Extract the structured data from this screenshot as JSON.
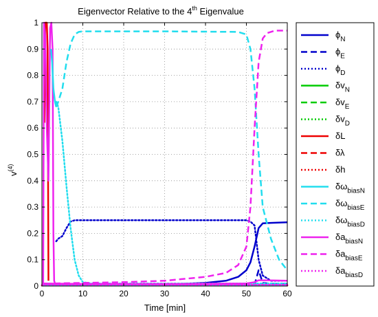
{
  "chart_data": {
    "type": "line",
    "title": "Eigenvector Relative to the 4th Eigenvalue",
    "title_parts": {
      "pre": "Eigenvector Relative to the 4",
      "sup": "th",
      "post": " Eigenvalue"
    },
    "xlabel": "Time [min]",
    "ylabel": {
      "base": "v",
      "sup": "(4)"
    },
    "xlim": [
      0,
      60
    ],
    "ylim": [
      0,
      1
    ],
    "xticks": [
      0,
      10,
      20,
      30,
      40,
      50,
      60
    ],
    "yticks": [
      0,
      0.1,
      0.2,
      0.3,
      0.4,
      0.5,
      0.6,
      0.7,
      0.8,
      0.9,
      1
    ],
    "ytick_labels": [
      "0",
      "0.1",
      "0.2",
      "0.3",
      "0.4",
      "0.5",
      "0.6",
      "0.7",
      "0.8",
      "0.9",
      "1"
    ],
    "grid": true,
    "legend_position": "outside-right",
    "series": [
      {
        "name": "ϕN",
        "base": "ϕ",
        "sub": "N",
        "color": "#0000cc",
        "style": "solid",
        "points": [
          [
            0,
            0.01
          ],
          [
            5,
            0.005
          ],
          [
            10,
            0.004
          ],
          [
            20,
            0.004
          ],
          [
            30,
            0.006
          ],
          [
            40,
            0.012
          ],
          [
            45,
            0.02
          ],
          [
            48,
            0.035
          ],
          [
            50,
            0.06
          ],
          [
            51,
            0.09
          ],
          [
            52,
            0.15
          ],
          [
            53,
            0.22
          ],
          [
            54,
            0.238
          ],
          [
            56,
            0.24
          ],
          [
            60,
            0.242
          ]
        ]
      },
      {
        "name": "ϕE",
        "base": "ϕ",
        "sub": "E",
        "color": "#0000cc",
        "style": "dash",
        "points": [
          [
            0,
            0.005
          ],
          [
            10,
            0.003
          ],
          [
            30,
            0.003
          ],
          [
            50,
            0.004
          ],
          [
            52,
            0.006
          ],
          [
            53,
            0.06
          ],
          [
            54,
            0.012
          ],
          [
            56,
            0.009
          ],
          [
            60,
            0.008
          ]
        ]
      },
      {
        "name": "ϕD",
        "base": "ϕ",
        "sub": "D",
        "color": "#0000cc",
        "style": "dot",
        "points": [
          [
            3.5,
            0.17
          ],
          [
            4,
            0.18
          ],
          [
            5,
            0.19
          ],
          [
            6,
            0.22
          ],
          [
            7,
            0.245
          ],
          [
            8,
            0.25
          ],
          [
            20,
            0.25
          ],
          [
            40,
            0.25
          ],
          [
            50,
            0.25
          ],
          [
            51,
            0.245
          ],
          [
            52,
            0.23
          ],
          [
            53,
            0.1
          ],
          [
            54,
            0.04
          ],
          [
            56,
            0.02
          ],
          [
            60,
            0.02
          ]
        ]
      },
      {
        "name": "δvN",
        "base": "δv",
        "sub": "N",
        "color": "#00cc00",
        "style": "solid",
        "points": [
          [
            0,
            0.002
          ],
          [
            60,
            0.002
          ]
        ]
      },
      {
        "name": "δvE",
        "base": "δv",
        "sub": "E",
        "color": "#00cc00",
        "style": "dash",
        "points": [
          [
            0,
            0.002
          ],
          [
            60,
            0.002
          ]
        ]
      },
      {
        "name": "δvD",
        "base": "δv",
        "sub": "D",
        "color": "#00cc00",
        "style": "dot",
        "points": [
          [
            0,
            0.002
          ],
          [
            60,
            0.002
          ]
        ]
      },
      {
        "name": "δL",
        "base": "δL",
        "sub": "",
        "color": "#ee0000",
        "style": "solid",
        "points": [
          [
            0.6,
            0.62
          ],
          [
            0.8,
            1
          ],
          [
            1.2,
            1
          ],
          [
            1.4,
            0.9
          ],
          [
            1.6,
            0.02
          ]
        ]
      },
      {
        "name": "δλ",
        "base": "δλ",
        "sub": "",
        "color": "#ee0000",
        "style": "dash",
        "points": [
          [
            0,
            0.002
          ],
          [
            60,
            0.002
          ]
        ]
      },
      {
        "name": "δh",
        "base": "δh",
        "sub": "",
        "color": "#ee0000",
        "style": "dot",
        "points": [
          [
            0,
            0.002
          ],
          [
            60,
            0.002
          ]
        ]
      },
      {
        "name": "δωbiasN",
        "base": "δω",
        "sub": "biasN",
        "color": "#22ddee",
        "style": "solid",
        "points": [
          [
            0,
            0.003
          ],
          [
            60,
            0.003
          ]
        ]
      },
      {
        "name": "δωbiasE",
        "base": "δω",
        "sub": "biasE",
        "color": "#22ddee",
        "style": "dash",
        "points": [
          [
            3.5,
            0.68
          ],
          [
            4,
            0.7
          ],
          [
            5,
            0.75
          ],
          [
            6,
            0.85
          ],
          [
            7,
            0.92
          ],
          [
            8,
            0.955
          ],
          [
            9,
            0.965
          ],
          [
            10,
            0.967
          ],
          [
            30,
            0.967
          ],
          [
            48,
            0.965
          ],
          [
            50,
            0.955
          ],
          [
            51,
            0.9
          ],
          [
            52,
            0.75
          ],
          [
            53,
            0.5
          ],
          [
            54,
            0.3
          ],
          [
            56,
            0.18
          ],
          [
            58,
            0.1
          ],
          [
            60,
            0.06
          ]
        ]
      },
      {
        "name": "δωbiasD",
        "base": "δω",
        "sub": "biasD",
        "color": "#22ddee",
        "style": "dot",
        "points": [
          [
            3.5,
            0.7
          ],
          [
            4,
            0.68
          ],
          [
            5,
            0.55
          ],
          [
            6,
            0.38
          ],
          [
            7,
            0.22
          ],
          [
            8,
            0.1
          ],
          [
            9,
            0.04
          ],
          [
            10,
            0.015
          ],
          [
            12,
            0.01
          ],
          [
            30,
            0.01
          ],
          [
            60,
            0.01
          ]
        ]
      },
      {
        "name": "δabiasN",
        "base": "δa",
        "sub": "biasN",
        "color": "#ee22ee",
        "style": "solid",
        "points": [
          [
            0,
            0.01
          ],
          [
            10,
            0.008
          ],
          [
            30,
            0.008
          ],
          [
            50,
            0.01
          ],
          [
            52,
            0.015
          ],
          [
            53,
            0.022
          ],
          [
            55,
            0.022
          ],
          [
            60,
            0.02
          ]
        ]
      },
      {
        "name": "δabiasE",
        "base": "δa",
        "sub": "biasE",
        "color": "#ee22ee",
        "style": "dash",
        "points": [
          [
            3,
            0.01
          ],
          [
            10,
            0.012
          ],
          [
            20,
            0.015
          ],
          [
            30,
            0.02
          ],
          [
            40,
            0.035
          ],
          [
            45,
            0.05
          ],
          [
            48,
            0.08
          ],
          [
            50,
            0.15
          ],
          [
            51,
            0.3
          ],
          [
            52,
            0.6
          ],
          [
            53,
            0.85
          ],
          [
            54,
            0.94
          ],
          [
            55,
            0.96
          ],
          [
            57,
            0.97
          ],
          [
            60,
            0.97
          ]
        ]
      },
      {
        "name": "δabiasD",
        "base": "δa",
        "sub": "biasD",
        "color": "#ee22ee",
        "style": "dot",
        "points": [
          [
            0,
            0.005
          ],
          [
            60,
            0.005
          ]
        ]
      }
    ],
    "spikes": [
      {
        "color": "#ee22ee",
        "points": [
          [
            0.3,
            0
          ],
          [
            0.5,
            1
          ],
          [
            0.8,
            0.95
          ],
          [
            1.2,
            0.6
          ],
          [
            1.6,
            0.4
          ],
          [
            2.0,
            0.98
          ],
          [
            2.3,
            1
          ],
          [
            2.6,
            0.9
          ],
          [
            2.8,
            0.2
          ],
          [
            3.0,
            0.02
          ],
          [
            3.2,
            0.01
          ]
        ]
      },
      {
        "color": "#22ddee",
        "points": [
          [
            2.2,
            0.9
          ],
          [
            2.5,
            0.85
          ],
          [
            2.8,
            0.75
          ],
          [
            3.2,
            0.7
          ],
          [
            3.5,
            0.68
          ]
        ]
      }
    ]
  }
}
